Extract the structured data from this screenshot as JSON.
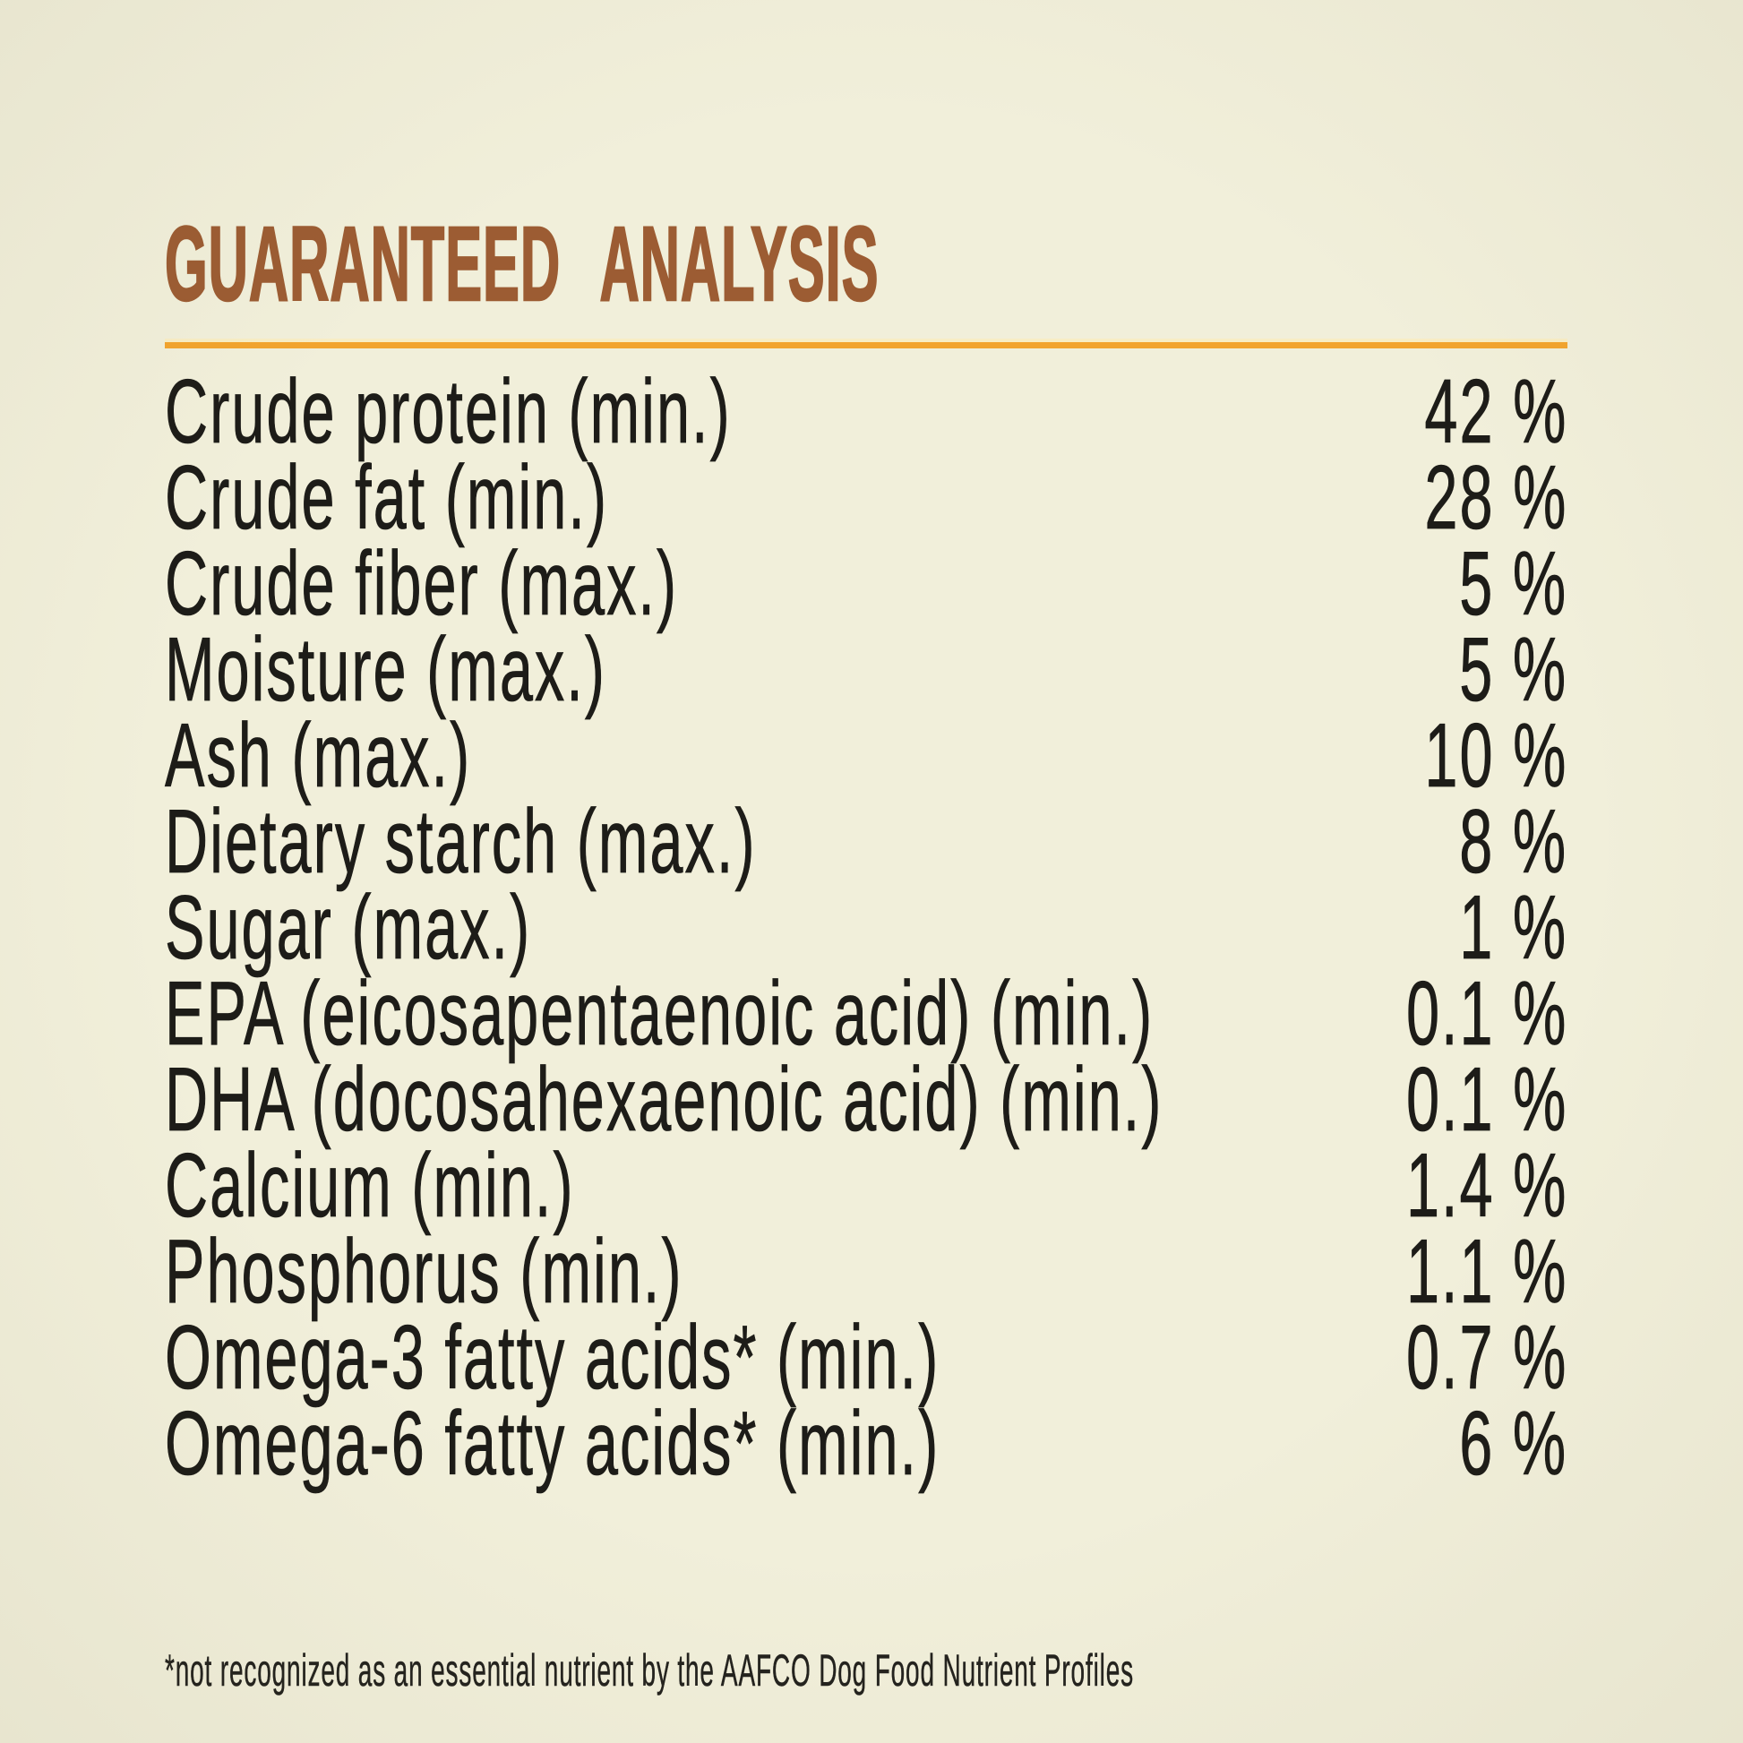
{
  "label": {
    "title": "GUARANTEED ANALYSIS",
    "footnote": "*not recognized as an essential nutrient by the AAFCO Dog Food Nutrient Profiles"
  },
  "analysis": {
    "rows": [
      {
        "label": "Crude protein (min.)",
        "value": "42 %"
      },
      {
        "label": "Crude fat (min.)",
        "value": "28 %"
      },
      {
        "label": "Crude fiber (max.)",
        "value": "5 %"
      },
      {
        "label": "Moisture (max.)",
        "value": "5 %"
      },
      {
        "label": "Ash (max.)",
        "value": "10 %"
      },
      {
        "label": "Dietary starch (max.)",
        "value": "8 %"
      },
      {
        "label": "Sugar (max.)",
        "value": "1 %"
      },
      {
        "label": "EPA (eicosapentaenoic acid) (min.)",
        "value": "0.1 %"
      },
      {
        "label": "DHA (docosahexaenoic acid) (min.)",
        "value": "0.1 %"
      },
      {
        "label": "Calcium (min.)",
        "value": "1.4 %"
      },
      {
        "label": "Phosphorus (min.)",
        "value": "1.1 %"
      },
      {
        "label": "Omega-3 fatty acids* (min.)",
        "value": "0.7 %"
      },
      {
        "label": "Omega-6 fatty acids* (min.)",
        "value": "6 %"
      }
    ]
  },
  "colors": {
    "background": "#f1efda",
    "title": "#9c5c33",
    "divider": "#f2a42e",
    "divider-highlight": "#f8edc4",
    "text": "#1d1c18",
    "footnote-text": "#23221e"
  }
}
